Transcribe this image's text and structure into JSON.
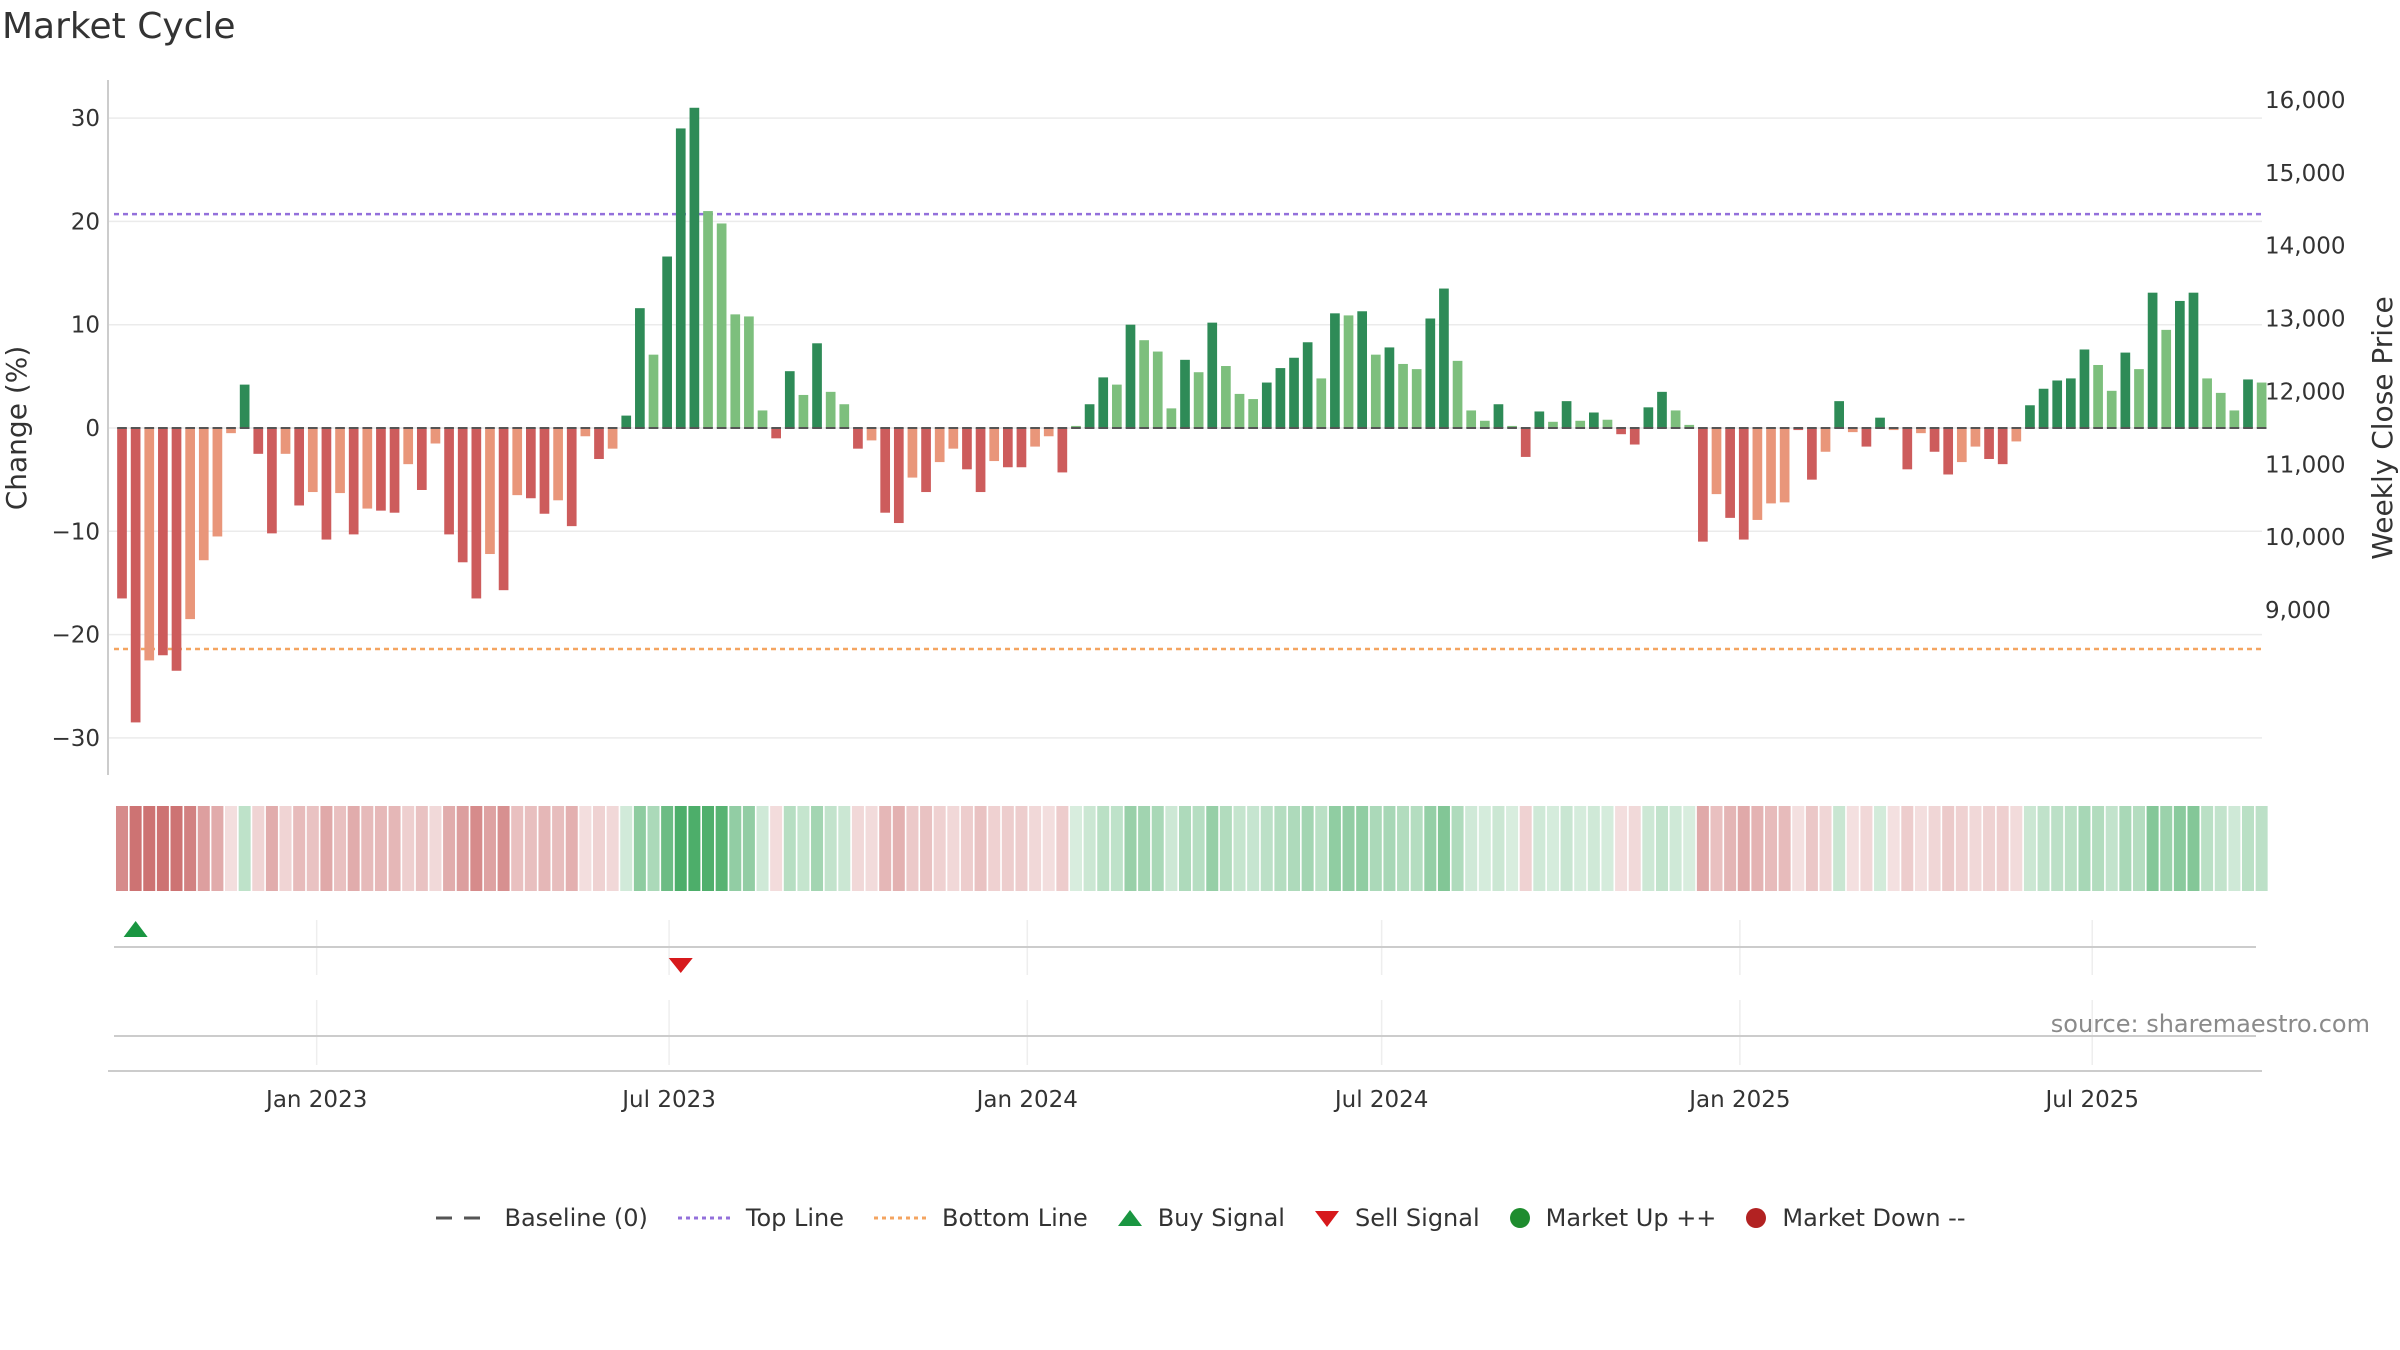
{
  "title": "Market Cycle",
  "source": "source: sharemaestro.com",
  "colors": {
    "strong_up": "#2e8b57",
    "up": "#7dbf7d",
    "strong_down": "#cd5c5c",
    "down": "#e9967a",
    "top_line": "#9370db",
    "bottom_line": "#f4a460",
    "buy": "#1a9641",
    "sell": "#d7191c",
    "market_up": "#1e8c2e",
    "market_down": "#b22222"
  },
  "legend": [
    {
      "key": "baseline",
      "label": "Baseline (0)",
      "icon": "dashed-line-icon"
    },
    {
      "key": "top",
      "label": "Top Line",
      "icon": "dotted-line-icon"
    },
    {
      "key": "bottom",
      "label": "Bottom Line",
      "icon": "dotted-line-icon"
    },
    {
      "key": "buy",
      "label": "Buy Signal",
      "icon": "triangle-up-icon"
    },
    {
      "key": "sell",
      "label": "Sell Signal",
      "icon": "triangle-down-icon"
    },
    {
      "key": "mup",
      "label": "Market Up ++",
      "icon": "circle-icon"
    },
    {
      "key": "mdown",
      "label": "Market Down --",
      "icon": "circle-icon"
    }
  ],
  "chart_data": {
    "type": "bar",
    "title": "Market Cycle",
    "ylabel": "Change (%)",
    "y2label": "Weekly Close Price",
    "ylim": [
      -33,
      34
    ],
    "yticks": [
      30,
      20,
      10,
      0,
      -10,
      -20,
      -30
    ],
    "y2ticks": [
      "16,000",
      "15,000",
      "14,000",
      "13,000",
      "12,000",
      "11,000",
      "10,000",
      "9,000"
    ],
    "y2lim": [
      8200,
      16200
    ],
    "top_line": 20.7,
    "bottom_line": -21.4,
    "x_start": "2022-09-23",
    "x_end": "2025-09-19",
    "xtick_labels": [
      {
        "date": "2023-01-01",
        "label": "Jan 2023"
      },
      {
        "date": "2023-07-01",
        "label": "Jul 2023"
      },
      {
        "date": "2024-01-01",
        "label": "Jan 2024"
      },
      {
        "date": "2024-07-01",
        "label": "Jul 2024"
      },
      {
        "date": "2025-01-01",
        "label": "Jan 2025"
      },
      {
        "date": "2025-07-01",
        "label": "Jul 2025"
      }
    ],
    "bars": [
      {
        "date": "2022-09-23",
        "value": -16.5,
        "tone": "strong"
      },
      {
        "date": "2022-09-30",
        "value": -28.5,
        "tone": "strong"
      },
      {
        "date": "2022-10-07",
        "value": -22.5,
        "tone": "weak"
      },
      {
        "date": "2022-10-14",
        "value": -22.0,
        "tone": "strong"
      },
      {
        "date": "2022-10-21",
        "value": -23.5,
        "tone": "strong"
      },
      {
        "date": "2022-10-28",
        "value": -18.5,
        "tone": "weak"
      },
      {
        "date": "2022-11-04",
        "value": -12.8,
        "tone": "weak"
      },
      {
        "date": "2022-11-11",
        "value": -10.5,
        "tone": "weak"
      },
      {
        "date": "2022-11-18",
        "value": -0.5,
        "tone": "weak"
      },
      {
        "date": "2022-11-25",
        "value": 4.2,
        "tone": "strong"
      },
      {
        "date": "2022-12-02",
        "value": -2.5,
        "tone": "strong"
      },
      {
        "date": "2022-12-09",
        "value": -10.2,
        "tone": "strong"
      },
      {
        "date": "2022-12-16",
        "value": -2.5,
        "tone": "weak"
      },
      {
        "date": "2022-12-23",
        "value": -7.5,
        "tone": "strong"
      },
      {
        "date": "2022-12-30",
        "value": -6.2,
        "tone": "weak"
      },
      {
        "date": "2023-01-06",
        "value": -10.8,
        "tone": "strong"
      },
      {
        "date": "2023-01-13",
        "value": -6.3,
        "tone": "weak"
      },
      {
        "date": "2023-01-20",
        "value": -10.3,
        "tone": "strong"
      },
      {
        "date": "2023-01-27",
        "value": -7.8,
        "tone": "weak"
      },
      {
        "date": "2023-02-03",
        "value": -8.0,
        "tone": "strong"
      },
      {
        "date": "2023-02-10",
        "value": -8.2,
        "tone": "strong"
      },
      {
        "date": "2023-02-17",
        "value": -3.5,
        "tone": "weak"
      },
      {
        "date": "2023-02-24",
        "value": -6.0,
        "tone": "strong"
      },
      {
        "date": "2023-03-03",
        "value": -1.5,
        "tone": "weak"
      },
      {
        "date": "2023-03-10",
        "value": -10.3,
        "tone": "strong"
      },
      {
        "date": "2023-03-17",
        "value": -13.0,
        "tone": "strong"
      },
      {
        "date": "2023-03-24",
        "value": -16.5,
        "tone": "strong"
      },
      {
        "date": "2023-03-31",
        "value": -12.2,
        "tone": "weak"
      },
      {
        "date": "2023-04-07",
        "value": -15.7,
        "tone": "strong"
      },
      {
        "date": "2023-04-14",
        "value": -6.5,
        "tone": "weak"
      },
      {
        "date": "2023-04-21",
        "value": -6.8,
        "tone": "strong"
      },
      {
        "date": "2023-04-28",
        "value": -8.3,
        "tone": "strong"
      },
      {
        "date": "2023-05-05",
        "value": -7.0,
        "tone": "weak"
      },
      {
        "date": "2023-05-12",
        "value": -9.5,
        "tone": "strong"
      },
      {
        "date": "2023-05-19",
        "value": -0.8,
        "tone": "weak"
      },
      {
        "date": "2023-05-26",
        "value": -3.0,
        "tone": "strong"
      },
      {
        "date": "2023-06-02",
        "value": -2.0,
        "tone": "weak"
      },
      {
        "date": "2023-06-09",
        "value": 1.2,
        "tone": "strong"
      },
      {
        "date": "2023-06-16",
        "value": 11.6,
        "tone": "strong"
      },
      {
        "date": "2023-06-23",
        "value": 7.1,
        "tone": "weak"
      },
      {
        "date": "2023-06-30",
        "value": 16.6,
        "tone": "strong"
      },
      {
        "date": "2023-07-07",
        "value": 29.0,
        "tone": "strong"
      },
      {
        "date": "2023-07-14",
        "value": 31.0,
        "tone": "strong"
      },
      {
        "date": "2023-07-21",
        "value": 21.0,
        "tone": "weak"
      },
      {
        "date": "2023-07-28",
        "value": 19.8,
        "tone": "weak"
      },
      {
        "date": "2023-08-04",
        "value": 11.0,
        "tone": "weak"
      },
      {
        "date": "2023-08-11",
        "value": 10.8,
        "tone": "weak"
      },
      {
        "date": "2023-08-18",
        "value": 1.7,
        "tone": "weak"
      },
      {
        "date": "2023-08-25",
        "value": -1.0,
        "tone": "strong"
      },
      {
        "date": "2023-09-01",
        "value": 5.5,
        "tone": "strong"
      },
      {
        "date": "2023-09-08",
        "value": 3.2,
        "tone": "weak"
      },
      {
        "date": "2023-09-15",
        "value": 8.2,
        "tone": "strong"
      },
      {
        "date": "2023-09-22",
        "value": 3.5,
        "tone": "weak"
      },
      {
        "date": "2023-09-29",
        "value": 2.3,
        "tone": "weak"
      },
      {
        "date": "2023-10-06",
        "value": -2.0,
        "tone": "strong"
      },
      {
        "date": "2023-10-13",
        "value": -1.2,
        "tone": "weak"
      },
      {
        "date": "2023-10-20",
        "value": -8.2,
        "tone": "strong"
      },
      {
        "date": "2023-10-27",
        "value": -9.2,
        "tone": "strong"
      },
      {
        "date": "2023-11-03",
        "value": -4.8,
        "tone": "weak"
      },
      {
        "date": "2023-11-10",
        "value": -6.2,
        "tone": "strong"
      },
      {
        "date": "2023-11-17",
        "value": -3.3,
        "tone": "weak"
      },
      {
        "date": "2023-11-24",
        "value": -2.0,
        "tone": "weak"
      },
      {
        "date": "2023-12-01",
        "value": -4.0,
        "tone": "strong"
      },
      {
        "date": "2023-12-08",
        "value": -6.2,
        "tone": "strong"
      },
      {
        "date": "2023-12-15",
        "value": -3.2,
        "tone": "weak"
      },
      {
        "date": "2023-12-22",
        "value": -3.8,
        "tone": "strong"
      },
      {
        "date": "2023-12-29",
        "value": -3.8,
        "tone": "strong"
      },
      {
        "date": "2024-01-05",
        "value": -1.8,
        "tone": "weak"
      },
      {
        "date": "2024-01-12",
        "value": -0.8,
        "tone": "weak"
      },
      {
        "date": "2024-01-19",
        "value": -4.3,
        "tone": "strong"
      },
      {
        "date": "2024-01-26",
        "value": 0.2,
        "tone": "weak"
      },
      {
        "date": "2024-02-02",
        "value": 2.3,
        "tone": "strong"
      },
      {
        "date": "2024-02-09",
        "value": 4.9,
        "tone": "strong"
      },
      {
        "date": "2024-02-16",
        "value": 4.2,
        "tone": "weak"
      },
      {
        "date": "2024-02-23",
        "value": 10.0,
        "tone": "strong"
      },
      {
        "date": "2024-03-01",
        "value": 8.5,
        "tone": "weak"
      },
      {
        "date": "2024-03-08",
        "value": 7.4,
        "tone": "weak"
      },
      {
        "date": "2024-03-15",
        "value": 1.9,
        "tone": "weak"
      },
      {
        "date": "2024-03-22",
        "value": 6.6,
        "tone": "strong"
      },
      {
        "date": "2024-03-29",
        "value": 5.4,
        "tone": "weak"
      },
      {
        "date": "2024-04-05",
        "value": 10.2,
        "tone": "strong"
      },
      {
        "date": "2024-04-12",
        "value": 6.0,
        "tone": "weak"
      },
      {
        "date": "2024-04-19",
        "value": 3.3,
        "tone": "weak"
      },
      {
        "date": "2024-04-26",
        "value": 2.8,
        "tone": "weak"
      },
      {
        "date": "2024-05-03",
        "value": 4.4,
        "tone": "strong"
      },
      {
        "date": "2024-05-10",
        "value": 5.8,
        "tone": "strong"
      },
      {
        "date": "2024-05-17",
        "value": 6.8,
        "tone": "strong"
      },
      {
        "date": "2024-05-24",
        "value": 8.3,
        "tone": "strong"
      },
      {
        "date": "2024-05-31",
        "value": 4.8,
        "tone": "weak"
      },
      {
        "date": "2024-06-07",
        "value": 11.1,
        "tone": "strong"
      },
      {
        "date": "2024-06-14",
        "value": 10.9,
        "tone": "weak"
      },
      {
        "date": "2024-06-21",
        "value": 11.3,
        "tone": "strong"
      },
      {
        "date": "2024-06-28",
        "value": 7.1,
        "tone": "weak"
      },
      {
        "date": "2024-07-05",
        "value": 7.8,
        "tone": "strong"
      },
      {
        "date": "2024-07-12",
        "value": 6.2,
        "tone": "weak"
      },
      {
        "date": "2024-07-19",
        "value": 5.7,
        "tone": "weak"
      },
      {
        "date": "2024-07-26",
        "value": 10.6,
        "tone": "strong"
      },
      {
        "date": "2024-08-02",
        "value": 13.5,
        "tone": "strong"
      },
      {
        "date": "2024-08-09",
        "value": 6.5,
        "tone": "weak"
      },
      {
        "date": "2024-08-16",
        "value": 1.7,
        "tone": "weak"
      },
      {
        "date": "2024-08-23",
        "value": 0.7,
        "tone": "weak"
      },
      {
        "date": "2024-08-30",
        "value": 2.3,
        "tone": "strong"
      },
      {
        "date": "2024-09-06",
        "value": 0.2,
        "tone": "weak"
      },
      {
        "date": "2024-09-13",
        "value": -2.8,
        "tone": "strong"
      },
      {
        "date": "2024-09-20",
        "value": 1.6,
        "tone": "strong"
      },
      {
        "date": "2024-09-27",
        "value": 0.6,
        "tone": "weak"
      },
      {
        "date": "2024-10-04",
        "value": 2.6,
        "tone": "strong"
      },
      {
        "date": "2024-10-11",
        "value": 0.7,
        "tone": "weak"
      },
      {
        "date": "2024-10-18",
        "value": 1.5,
        "tone": "strong"
      },
      {
        "date": "2024-10-25",
        "value": 0.8,
        "tone": "weak"
      },
      {
        "date": "2024-11-01",
        "value": -0.6,
        "tone": "strong"
      },
      {
        "date": "2024-11-08",
        "value": -1.6,
        "tone": "strong"
      },
      {
        "date": "2024-11-15",
        "value": 2.0,
        "tone": "strong"
      },
      {
        "date": "2024-11-22",
        "value": 3.5,
        "tone": "strong"
      },
      {
        "date": "2024-11-29",
        "value": 1.7,
        "tone": "weak"
      },
      {
        "date": "2024-12-06",
        "value": 0.3,
        "tone": "weak"
      },
      {
        "date": "2024-12-13",
        "value": -11.0,
        "tone": "strong"
      },
      {
        "date": "2024-12-20",
        "value": -6.4,
        "tone": "weak"
      },
      {
        "date": "2024-12-27",
        "value": -8.7,
        "tone": "strong"
      },
      {
        "date": "2025-01-03",
        "value": -10.8,
        "tone": "strong"
      },
      {
        "date": "2025-01-10",
        "value": -8.9,
        "tone": "weak"
      },
      {
        "date": "2025-01-17",
        "value": -7.3,
        "tone": "weak"
      },
      {
        "date": "2025-01-24",
        "value": -7.2,
        "tone": "weak"
      },
      {
        "date": "2025-01-31",
        "value": -0.2,
        "tone": "strong"
      },
      {
        "date": "2025-02-07",
        "value": -5.0,
        "tone": "strong"
      },
      {
        "date": "2025-02-14",
        "value": -2.3,
        "tone": "weak"
      },
      {
        "date": "2025-02-21",
        "value": 2.6,
        "tone": "strong"
      },
      {
        "date": "2025-02-28",
        "value": -0.4,
        "tone": "weak"
      },
      {
        "date": "2025-03-07",
        "value": -1.8,
        "tone": "strong"
      },
      {
        "date": "2025-03-14",
        "value": 1.0,
        "tone": "strong"
      },
      {
        "date": "2025-03-21",
        "value": -0.2,
        "tone": "weak"
      },
      {
        "date": "2025-03-28",
        "value": -4.0,
        "tone": "strong"
      },
      {
        "date": "2025-04-04",
        "value": -0.5,
        "tone": "weak"
      },
      {
        "date": "2025-04-11",
        "value": -2.3,
        "tone": "strong"
      },
      {
        "date": "2025-04-18",
        "value": -4.5,
        "tone": "strong"
      },
      {
        "date": "2025-04-25",
        "value": -3.3,
        "tone": "weak"
      },
      {
        "date": "2025-05-02",
        "value": -1.8,
        "tone": "weak"
      },
      {
        "date": "2025-05-09",
        "value": -3.0,
        "tone": "strong"
      },
      {
        "date": "2025-05-16",
        "value": -3.5,
        "tone": "strong"
      },
      {
        "date": "2025-05-23",
        "value": -1.3,
        "tone": "weak"
      },
      {
        "date": "2025-05-30",
        "value": 2.2,
        "tone": "strong"
      },
      {
        "date": "2025-06-06",
        "value": 3.8,
        "tone": "strong"
      },
      {
        "date": "2025-06-13",
        "value": 4.6,
        "tone": "strong"
      },
      {
        "date": "2025-06-20",
        "value": 4.8,
        "tone": "strong"
      },
      {
        "date": "2025-06-27",
        "value": 7.6,
        "tone": "strong"
      },
      {
        "date": "2025-07-04",
        "value": 6.1,
        "tone": "weak"
      },
      {
        "date": "2025-07-11",
        "value": 3.6,
        "tone": "weak"
      },
      {
        "date": "2025-07-18",
        "value": 7.3,
        "tone": "strong"
      },
      {
        "date": "2025-07-25",
        "value": 5.7,
        "tone": "weak"
      },
      {
        "date": "2025-08-01",
        "value": 13.1,
        "tone": "strong"
      },
      {
        "date": "2025-08-08",
        "value": 9.5,
        "tone": "weak"
      },
      {
        "date": "2025-08-15",
        "value": 12.3,
        "tone": "strong"
      },
      {
        "date": "2025-08-22",
        "value": 13.1,
        "tone": "strong"
      },
      {
        "date": "2025-08-29",
        "value": 4.8,
        "tone": "weak"
      },
      {
        "date": "2025-09-05",
        "value": 3.4,
        "tone": "weak"
      },
      {
        "date": "2025-09-12",
        "value": 1.7,
        "tone": "weak"
      },
      {
        "date": "2025-09-19",
        "value": 4.7,
        "tone": "strong"
      },
      {
        "date": "2025-09-26",
        "value": 4.4,
        "tone": "weak"
      }
    ],
    "buy_signals": [
      "2022-09-30"
    ],
    "sell_signals": [
      "2023-07-07"
    ]
  }
}
